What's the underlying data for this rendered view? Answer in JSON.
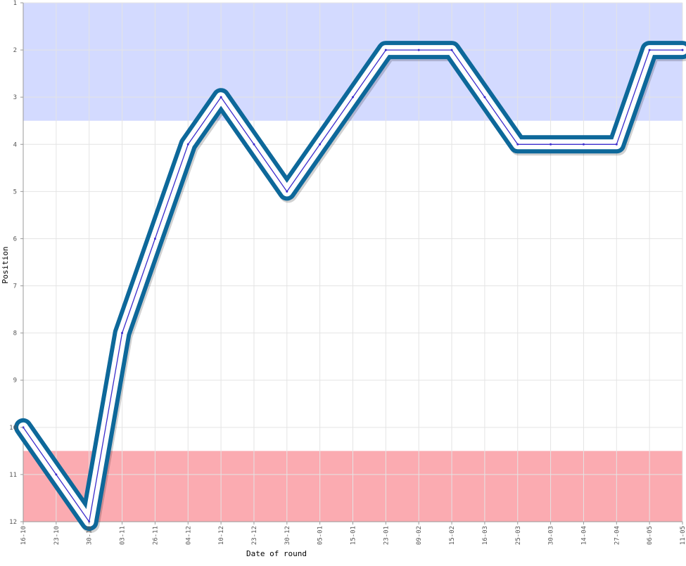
{
  "chart_data": {
    "type": "line",
    "title": "",
    "xlabel": "Date of round",
    "ylabel": "Position",
    "ylim": [
      1,
      12
    ],
    "y_inverted": true,
    "y_ticks": [
      1,
      2,
      3,
      4,
      5,
      6,
      7,
      8,
      9,
      10,
      11,
      12
    ],
    "grid": true,
    "legend": "none",
    "categories": [
      "16-10",
      "23-10",
      "30-10",
      "03-11",
      "26-11",
      "04-12",
      "10-12",
      "23-12",
      "30-12",
      "05-01",
      "15-01",
      "23-01",
      "09-02",
      "15-02",
      "16-03",
      "25-03",
      "30-03",
      "14-04",
      "27-04",
      "06-05",
      "11-05"
    ],
    "series": [
      {
        "values": [
          10,
          11,
          12,
          8,
          6,
          4,
          3,
          4,
          5,
          4,
          3,
          2,
          2,
          2,
          3,
          4,
          4,
          4,
          4,
          2,
          2
        ]
      }
    ],
    "zones": [
      {
        "from": 1,
        "to": 3.5,
        "color": "#d3daff"
      },
      {
        "from": 10.5,
        "to": 12,
        "color": "#fbabb1"
      }
    ],
    "colors": {
      "line_outer": "#0d689a",
      "line_inner": "#ffffff",
      "line_core": "#3c2ccc",
      "grid": "#e4e4e4",
      "axis": "#999999"
    }
  }
}
